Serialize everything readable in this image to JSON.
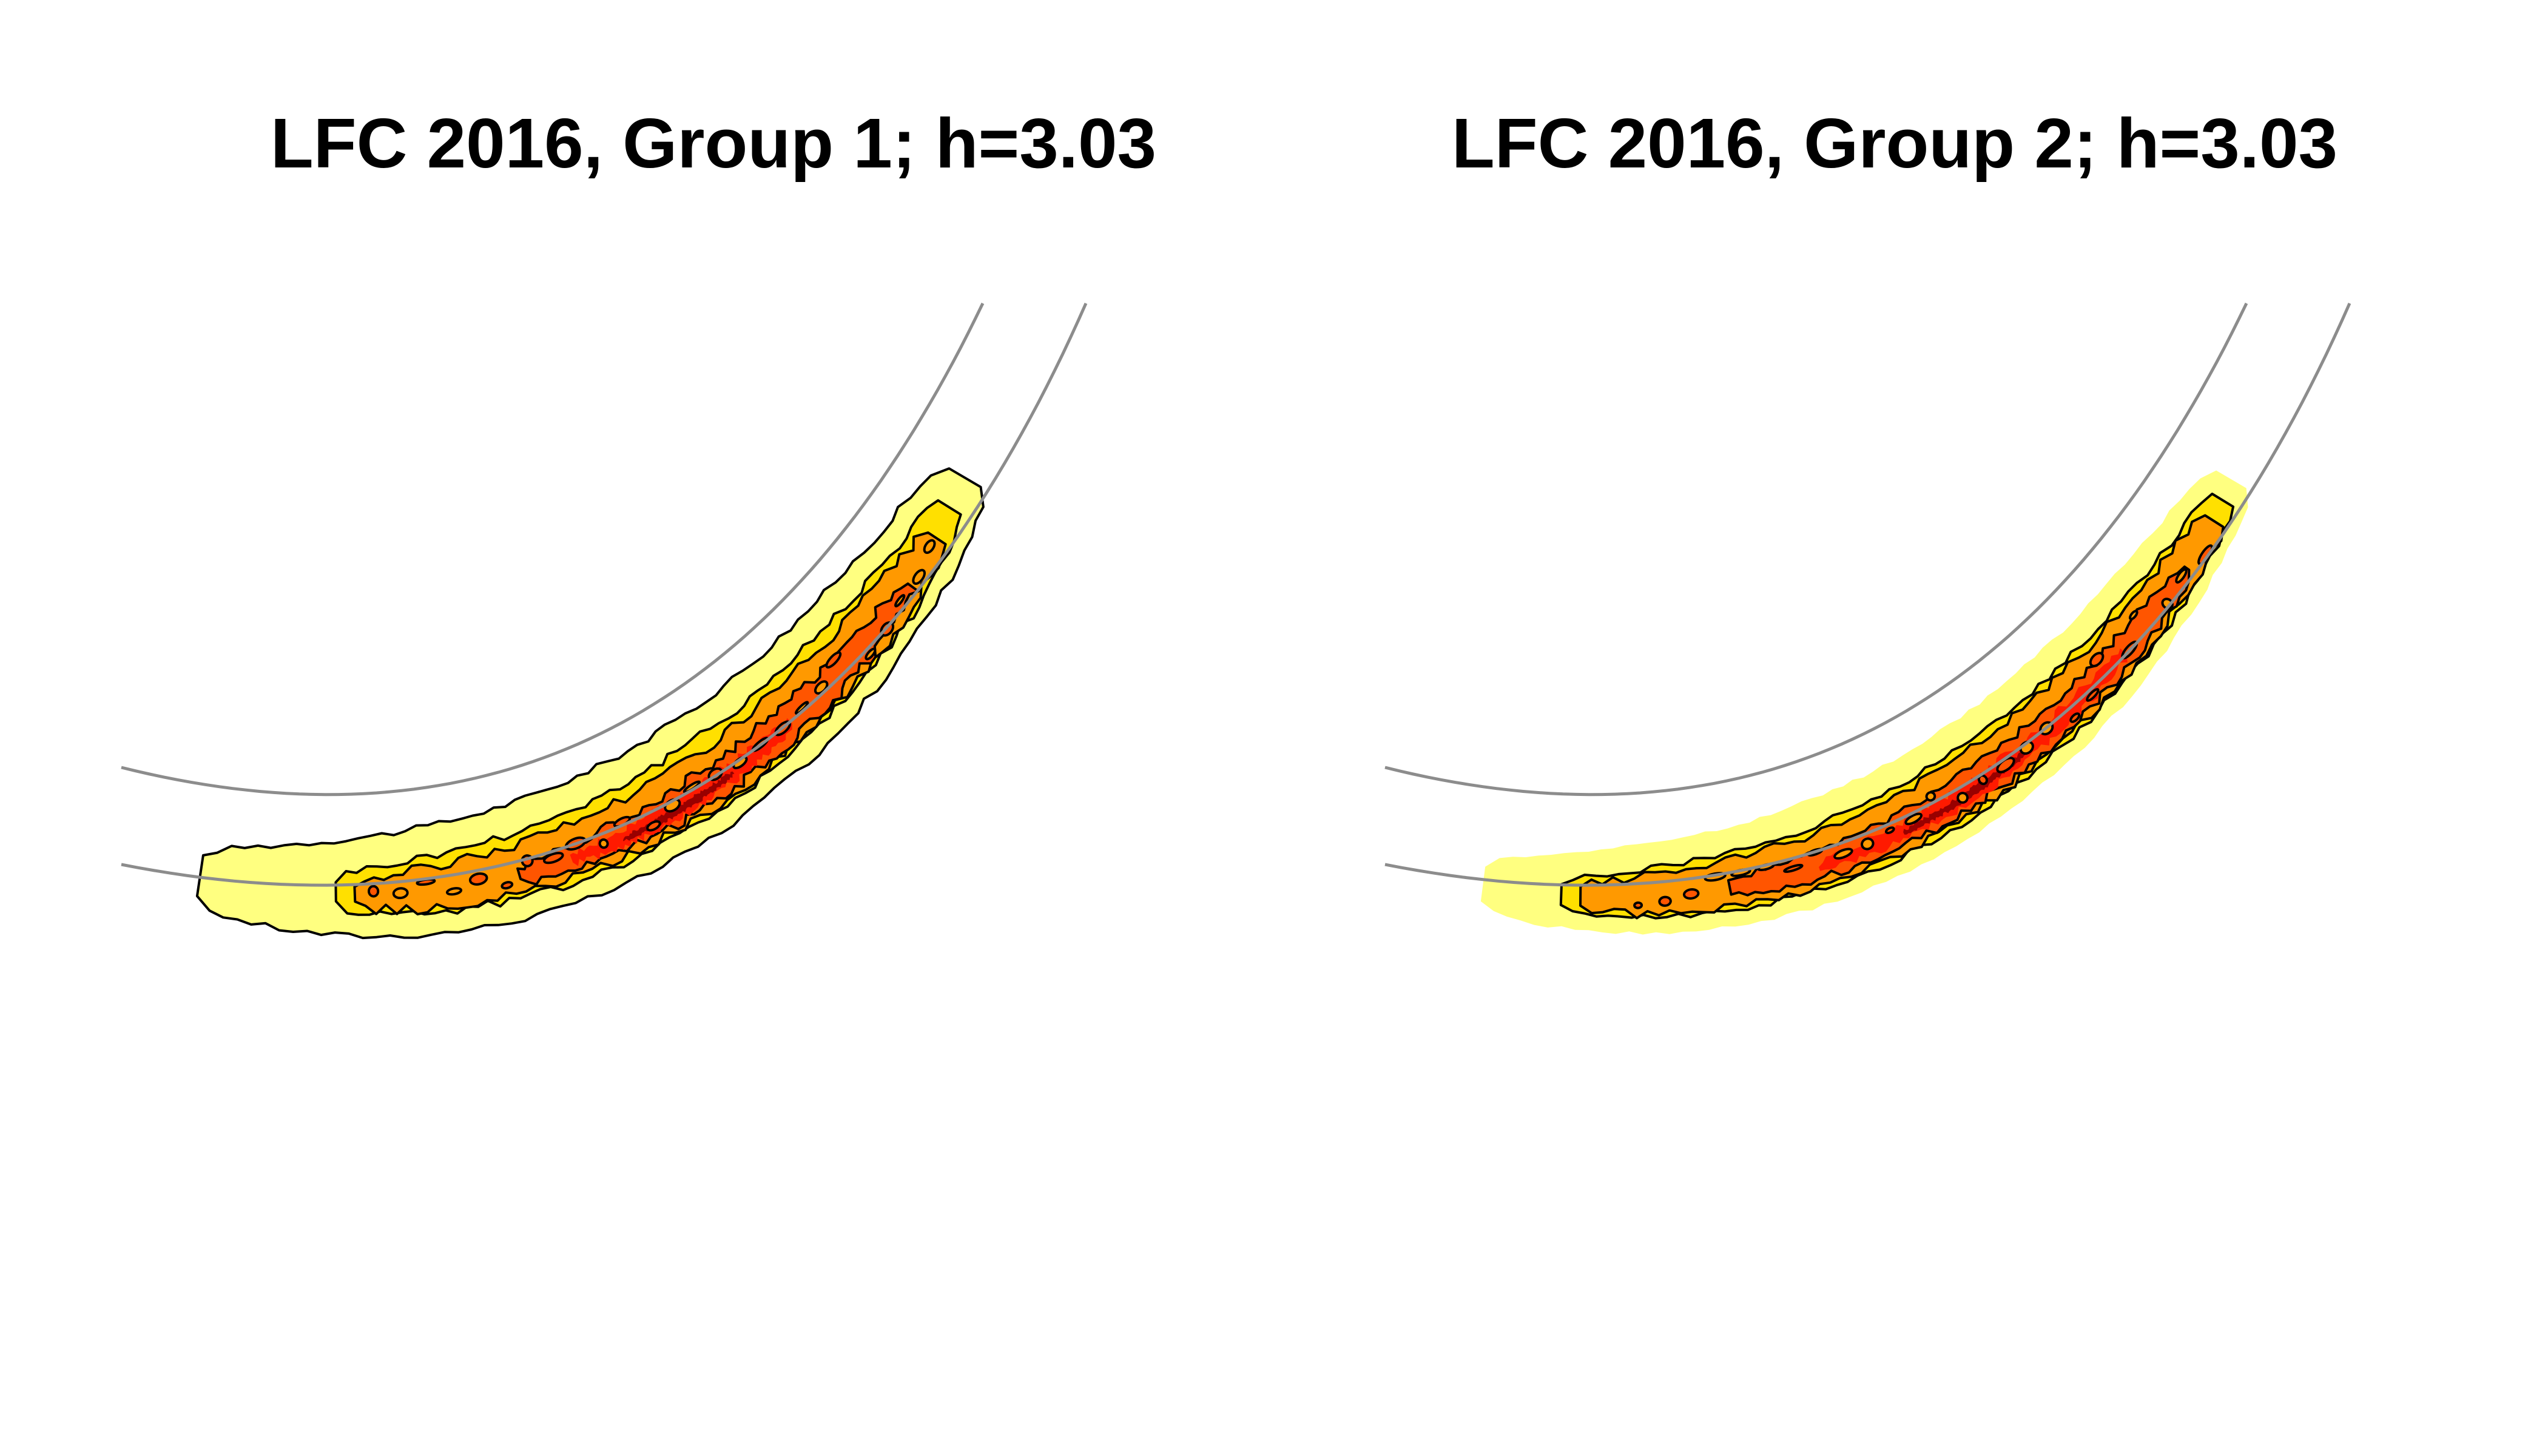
{
  "chart_data": [
    {
      "type": "heatmap",
      "title": "LFC 2016, Group 1; h=3.03",
      "subtitle": "",
      "xlabel": "",
      "ylabel": "",
      "axes_shown": false,
      "grid": false,
      "legend": "none",
      "overlay": "filled kernel density contours with black contour lines over a grey outlined curved track",
      "color_scale": [
        "#ffff80",
        "#ffe000",
        "#ff9900",
        "#ff5500",
        "#ff1a00",
        "#990000"
      ],
      "outline_color": "#8c8c8c",
      "density_concentration": "lower-right inner edge of the curve"
    },
    {
      "type": "heatmap",
      "title": "LFC 2016, Group 2; h=3.03",
      "subtitle": "",
      "xlabel": "",
      "ylabel": "",
      "axes_shown": false,
      "grid": false,
      "legend": "none",
      "overlay": "filled kernel density contours with black contour lines over a grey outlined curved track",
      "color_scale": [
        "#ffff80",
        "#ffe000",
        "#ff9900",
        "#ff5500",
        "#ff1a00",
        "#990000"
      ],
      "outline_color": "#8c8c8c",
      "density_concentration": "lower-right inner edge of the curve"
    }
  ]
}
